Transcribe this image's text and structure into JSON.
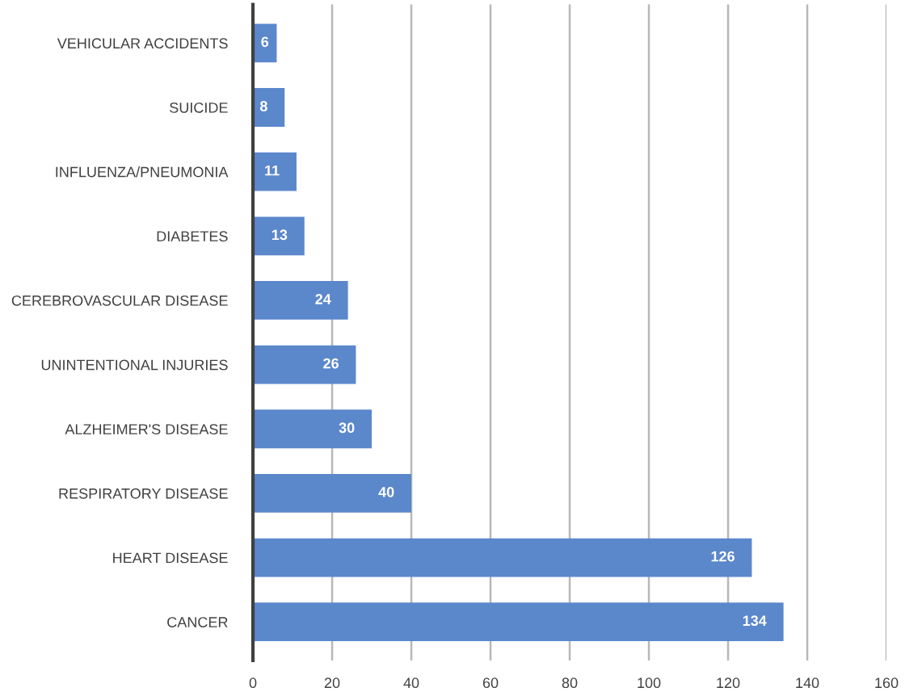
{
  "chart_data": {
    "type": "bar",
    "orientation": "horizontal",
    "categories": [
      "VEHICULAR ACCIDENTS",
      "SUICIDE",
      "INFLUENZA/PNEUMONIA",
      "DIABETES",
      "CEREBROVASCULAR DISEASE",
      "UNINTENTIONAL INJURIES",
      "ALZHEIMER'S DISEASE",
      "RESPIRATORY DISEASE",
      "HEART DISEASE",
      "CANCER"
    ],
    "values": [
      6,
      8,
      11,
      13,
      24,
      26,
      30,
      40,
      126,
      134
    ],
    "color": "#5b87cb",
    "xlim": [
      0,
      160
    ],
    "xticks": [
      0,
      20,
      40,
      60,
      80,
      100,
      120,
      140,
      160
    ],
    "grid": "x",
    "data_labels": true,
    "legend": false
  }
}
